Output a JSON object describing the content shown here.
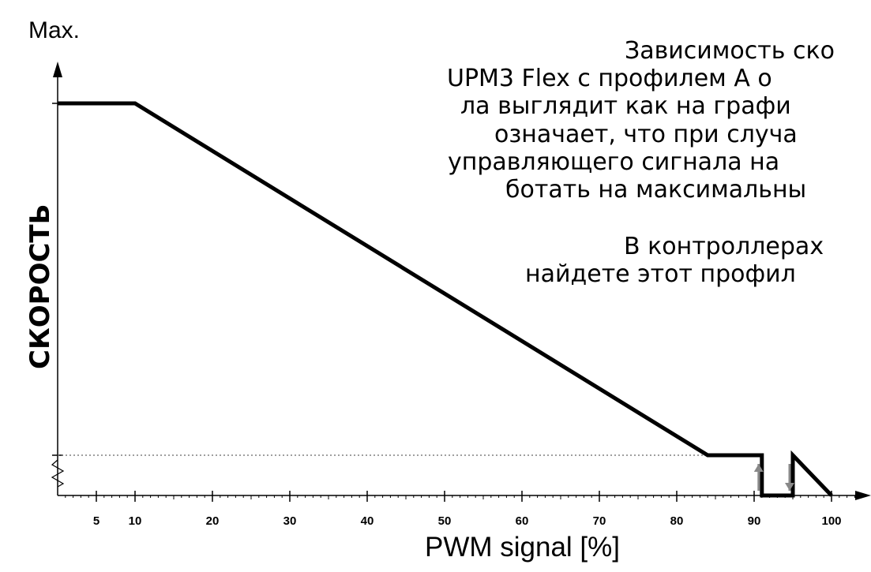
{
  "chart_data": {
    "type": "line",
    "y_top_label": "Max.",
    "ylabel": "СКОРОСТЬ",
    "xlabel": "PWM signal [%]",
    "x_ticks": [
      5,
      10,
      20,
      30,
      40,
      50,
      60,
      70,
      80,
      90,
      100
    ],
    "xlim": [
      0,
      105
    ],
    "ylim": [
      0,
      1
    ],
    "series": [
      {
        "x": [
          0,
          10,
          84,
          91,
          91,
          95,
          95,
          100
        ],
        "y": [
          1.0,
          1.0,
          0.11,
          0.11,
          0.0,
          0.0,
          0.11,
          0.0
        ]
      }
    ],
    "text_lines": [
      "Зависимость ско",
      "UPM3 Flex с профилем A о",
      "ла выглядит как на графи",
      "означает, что при случа",
      "управляющего сигнала на",
      "ботать на максимальны",
      "В контроллерах",
      "найдете этот профил"
    ],
    "colors": {
      "line": "#000000",
      "hysteresis_arrow": "#888888",
      "dotted": "#666666"
    }
  }
}
